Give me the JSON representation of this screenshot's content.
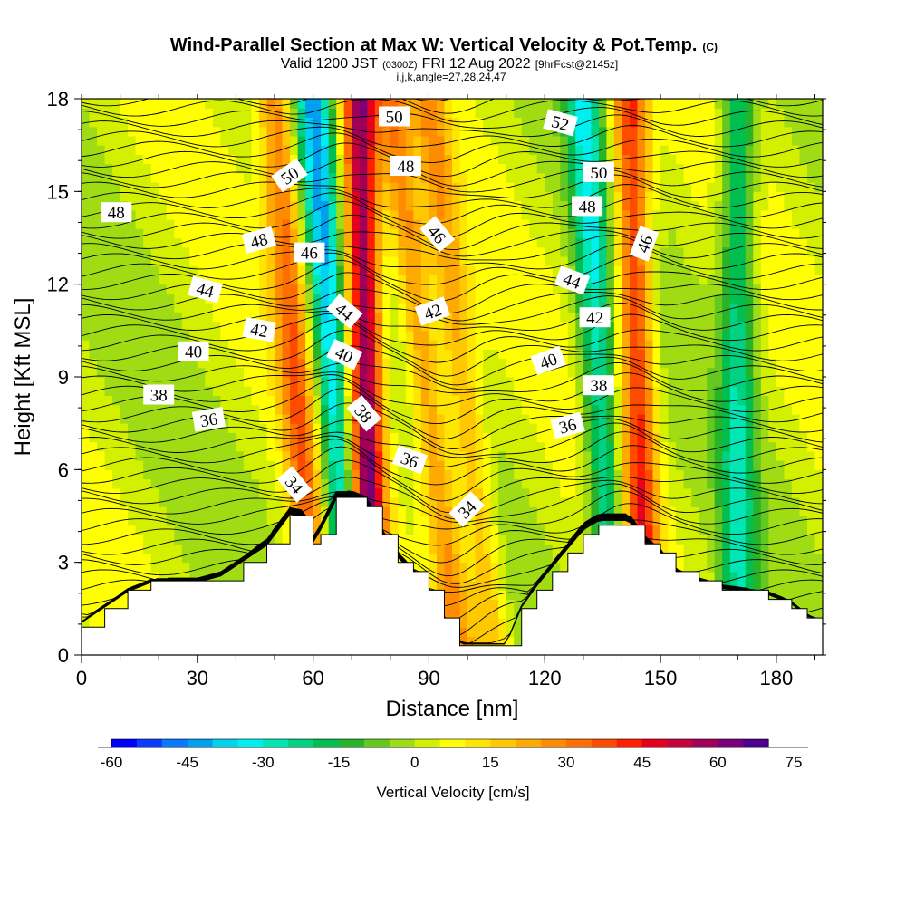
{
  "title": {
    "main": "Wind-Parallel Section at Max W: Vertical Velocity & Pot.Temp.",
    "units": "(C)",
    "valid_prefix": "Valid 1200 JST",
    "valid_utc": "(0300Z)",
    "valid_date": "FRI 12 Aug 2022",
    "forecast": "[9hrFcst@2145z]",
    "indices": "i,j,k,angle=27,28,24,47"
  },
  "chart_data": {
    "type": "heatmap",
    "xlabel": "Distance [nm]",
    "ylabel": "Height [Kft MSL]",
    "xlim": [
      0,
      192
    ],
    "ylim": [
      0,
      18
    ],
    "x_ticks": [
      "0",
      "30",
      "60",
      "90",
      "120",
      "150",
      "180"
    ],
    "y_ticks": [
      "0",
      "3",
      "6",
      "9",
      "12",
      "15",
      "18"
    ],
    "colorbar": {
      "label": "Vertical Velocity [cm/s]",
      "min": -60,
      "max": 75,
      "step": 5,
      "tick_labels": [
        "-60",
        "-45",
        "-30",
        "-15",
        "0",
        "15",
        "30",
        "45",
        "60",
        "75"
      ],
      "colors": [
        "#0000ff",
        "#0a3cff",
        "#0a78ff",
        "#00a0f0",
        "#00d2f0",
        "#00f0f0",
        "#00e6b4",
        "#00d282",
        "#00be50",
        "#28b428",
        "#64c81e",
        "#a0dc14",
        "#d2f000",
        "#ffff00",
        "#ffe600",
        "#ffc800",
        "#ffaa00",
        "#ff8c00",
        "#ff6e00",
        "#ff4b00",
        "#ff1e00",
        "#e6001e",
        "#c8003c",
        "#a0005a",
        "#780078",
        "#500090"
      ]
    },
    "vertical_velocity_bands": [
      {
        "center_bottom_nm": 61,
        "center_top_nm": 50,
        "w_cm_s": 30
      },
      {
        "center_bottom_nm": 70,
        "center_top_nm": 60,
        "w_cm_s": -40
      },
      {
        "center_bottom_nm": 75,
        "center_top_nm": 72,
        "w_cm_s": 60
      },
      {
        "center_bottom_nm": 98,
        "center_top_nm": 80,
        "w_cm_s": 25
      },
      {
        "center_bottom_nm": 107,
        "center_top_nm": 90,
        "w_cm_s": 20
      },
      {
        "center_bottom_nm": 138,
        "center_top_nm": 130,
        "w_cm_s": -30
      },
      {
        "center_bottom_nm": 146,
        "center_top_nm": 142,
        "w_cm_s": 40
      },
      {
        "center_bottom_nm": 170,
        "center_top_nm": 170,
        "w_cm_s": -25
      }
    ],
    "terrain_kft": {
      "x": [
        0,
        6,
        12,
        18,
        24,
        30,
        36,
        42,
        48,
        54,
        58,
        60,
        62,
        66,
        70,
        74,
        78,
        82,
        86,
        90,
        94,
        98,
        104,
        110,
        114,
        118,
        122,
        126,
        130,
        134,
        138,
        142,
        146,
        150,
        154,
        160,
        166,
        172,
        178,
        184,
        188,
        192
      ],
      "height": [
        1.0,
        1.5,
        2.0,
        2.3,
        2.3,
        2.3,
        2.5,
        3.0,
        3.5,
        4.5,
        4.4,
        3.6,
        4.0,
        5.0,
        5.0,
        4.8,
        3.8,
        3.1,
        2.6,
        2.0,
        1.1,
        0.3,
        0.3,
        0.3,
        1.5,
        2.2,
        2.8,
        3.4,
        4.0,
        4.3,
        4.3,
        4.3,
        3.6,
        3.2,
        2.6,
        2.3,
        2.1,
        2.0,
        1.9,
        1.6,
        1.2,
        1.0
      ]
    },
    "potential_temperature_labels": [
      {
        "text": "50",
        "x": 81,
        "y": 17.4,
        "angle": 0
      },
      {
        "text": "52",
        "x": 124,
        "y": 17.2,
        "angle": 15
      },
      {
        "text": "48",
        "x": 84,
        "y": 15.8,
        "angle": 0
      },
      {
        "text": "50",
        "x": 134,
        "y": 15.6,
        "angle": 0
      },
      {
        "text": "50",
        "x": 54,
        "y": 15.5,
        "angle": -35
      },
      {
        "text": "48",
        "x": 9,
        "y": 14.3,
        "angle": 0
      },
      {
        "text": "48",
        "x": 131,
        "y": 14.5,
        "angle": 0
      },
      {
        "text": "46",
        "x": 92,
        "y": 13.6,
        "angle": 50
      },
      {
        "text": "48",
        "x": 46,
        "y": 13.4,
        "angle": -15
      },
      {
        "text": "46",
        "x": 146,
        "y": 13.3,
        "angle": -70
      },
      {
        "text": "46",
        "x": 59,
        "y": 13.0,
        "angle": 0
      },
      {
        "text": "44",
        "x": 127,
        "y": 12.1,
        "angle": 20
      },
      {
        "text": "44",
        "x": 32,
        "y": 11.8,
        "angle": 15
      },
      {
        "text": "44",
        "x": 68,
        "y": 11.1,
        "angle": 40
      },
      {
        "text": "42",
        "x": 91,
        "y": 11.1,
        "angle": -20
      },
      {
        "text": "42",
        "x": 133,
        "y": 10.9,
        "angle": 0
      },
      {
        "text": "42",
        "x": 46,
        "y": 10.5,
        "angle": 10
      },
      {
        "text": "40",
        "x": 29,
        "y": 9.8,
        "angle": 0
      },
      {
        "text": "40",
        "x": 68,
        "y": 9.7,
        "angle": 25
      },
      {
        "text": "40",
        "x": 121,
        "y": 9.5,
        "angle": -20
      },
      {
        "text": "38",
        "x": 134,
        "y": 8.7,
        "angle": 0
      },
      {
        "text": "38",
        "x": 20,
        "y": 8.4,
        "angle": 0
      },
      {
        "text": "38",
        "x": 73,
        "y": 7.8,
        "angle": 50
      },
      {
        "text": "36",
        "x": 33,
        "y": 7.6,
        "angle": -10
      },
      {
        "text": "36",
        "x": 126,
        "y": 7.4,
        "angle": -15
      },
      {
        "text": "36",
        "x": 85,
        "y": 6.3,
        "angle": 20
      },
      {
        "text": "34",
        "x": 55,
        "y": 5.5,
        "angle": 50
      },
      {
        "text": "34",
        "x": 100,
        "y": 4.7,
        "angle": -45
      }
    ]
  }
}
